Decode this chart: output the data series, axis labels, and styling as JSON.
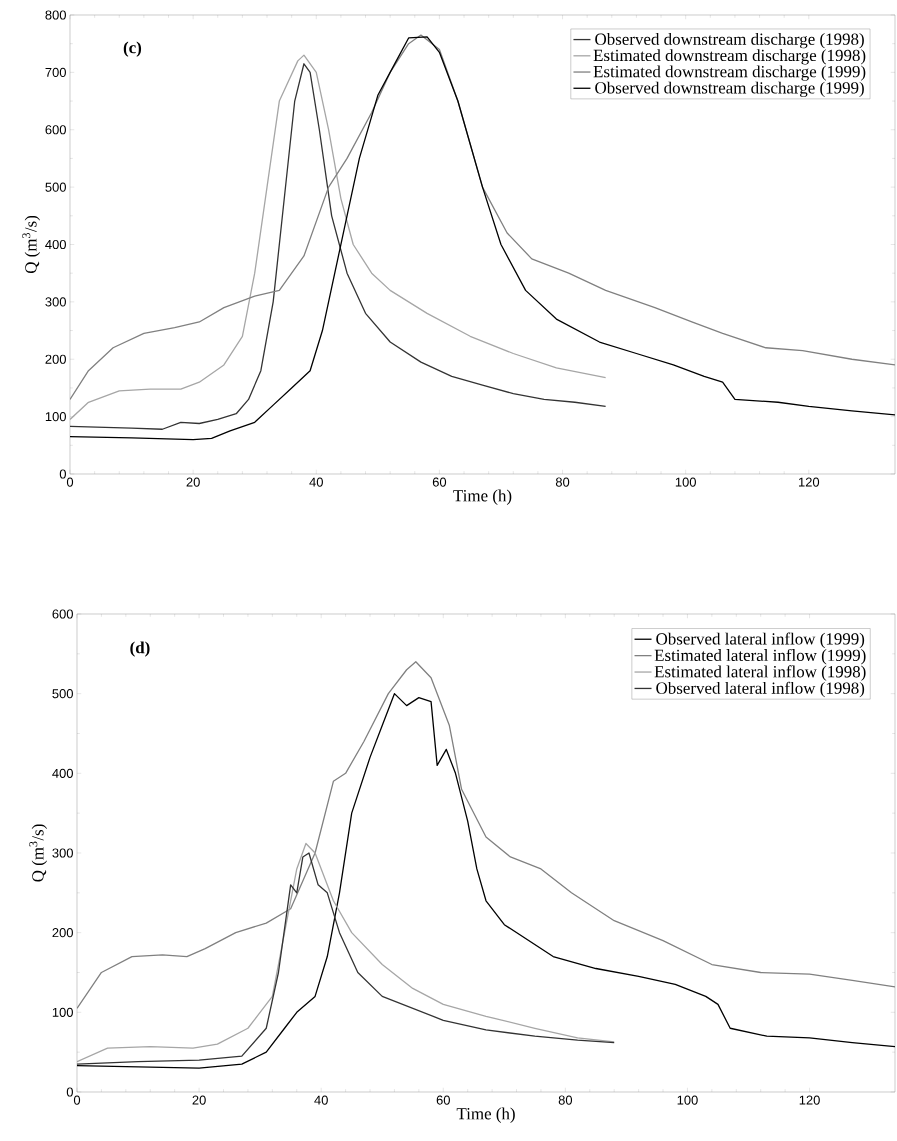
{
  "chart_data": [
    {
      "type": "line",
      "xlabel": "Time (h)",
      "ylabel": "Q (m$^{3}$/s)",
      "annotations": [
        "(c)"
      ],
      "legend": "top right",
      "xlim": [
        0,
        134
      ],
      "ylim": [
        0,
        800
      ],
      "xticks": [
        0,
        20,
        40,
        60,
        80,
        100,
        120
      ],
      "yticks": [
        0,
        100,
        200,
        300,
        400,
        500,
        600,
        700,
        800
      ],
      "series": [
        {
          "name": "Observed downstream discharge (1998)",
          "color": "#333333",
          "x": [
            0,
            10,
            15,
            18,
            21,
            24,
            27,
            29,
            31,
            33,
            35,
            36.5,
            38,
            39,
            40.5,
            42.5,
            45,
            48,
            52,
            57,
            62,
            67,
            72,
            77,
            82,
            87
          ],
          "values": [
            83,
            80,
            78,
            90,
            88,
            95,
            105,
            130,
            180,
            300,
            500,
            650,
            715,
            700,
            600,
            450,
            350,
            280,
            230,
            195,
            170,
            155,
            140,
            130,
            125,
            118
          ]
        },
        {
          "name": "Estimated downstream discharge (1998)",
          "color": "#a6a6a6",
          "x": [
            0,
            3,
            8,
            13,
            18,
            21,
            25,
            28,
            30,
            32,
            34,
            37,
            38,
            40,
            42,
            44,
            46,
            49,
            52,
            58,
            65,
            72,
            79,
            87
          ],
          "values": [
            95,
            125,
            145,
            148,
            148,
            160,
            190,
            240,
            350,
            500,
            650,
            720,
            730,
            700,
            600,
            480,
            400,
            350,
            320,
            280,
            240,
            210,
            185,
            168
          ]
        },
        {
          "name": "Estimated downstream discharge (1999)",
          "color": "#808080",
          "x": [
            0,
            3,
            7,
            12,
            17,
            21,
            25,
            30,
            34,
            38,
            42,
            45,
            49,
            52,
            55,
            57,
            60,
            63,
            67,
            71,
            75,
            81,
            87,
            95,
            101,
            106,
            113,
            119,
            127,
            134
          ],
          "values": [
            130,
            180,
            220,
            245,
            255,
            265,
            290,
            310,
            320,
            380,
            500,
            550,
            630,
            700,
            750,
            765,
            740,
            650,
            500,
            420,
            375,
            350,
            320,
            290,
            265,
            245,
            220,
            215,
            200,
            190
          ]
        },
        {
          "name": "Observed downstream discharge (1999)",
          "color": "#000000",
          "x": [
            0,
            10,
            20,
            23,
            26,
            30,
            33,
            36,
            39,
            41,
            44,
            47,
            50,
            53,
            55,
            58,
            60,
            63,
            67,
            70,
            74,
            79,
            86,
            92,
            98,
            103,
            106,
            108,
            115,
            120,
            127,
            134
          ],
          "values": [
            65,
            63,
            60,
            62,
            75,
            90,
            120,
            150,
            180,
            250,
            400,
            550,
            660,
            720,
            760,
            762,
            735,
            650,
            500,
            400,
            320,
            270,
            230,
            210,
            190,
            170,
            160,
            130,
            125,
            118,
            110,
            103
          ]
        }
      ]
    },
    {
      "type": "line",
      "xlabel": "Time (h)",
      "ylabel": "Q (m$^{3}$/s)",
      "annotations": [
        "(d)"
      ],
      "legend": "top right",
      "xlim": [
        0,
        134
      ],
      "ylim": [
        0,
        600
      ],
      "xticks": [
        0,
        20,
        40,
        60,
        80,
        100,
        120
      ],
      "yticks": [
        0,
        100,
        200,
        300,
        400,
        500,
        600
      ],
      "series": [
        {
          "name": "Observed lateral inflow (1999)",
          "color": "#000000",
          "x": [
            0,
            20,
            27,
            31,
            34,
            36,
            39,
            41,
            43,
            45,
            48,
            50,
            52,
            54,
            56,
            58,
            59,
            60.5,
            62,
            64,
            65.5,
            67,
            70,
            74,
            78,
            85,
            92,
            98,
            103,
            105,
            107,
            113,
            120,
            127,
            134
          ],
          "values": [
            33,
            30,
            35,
            50,
            80,
            100,
            120,
            170,
            250,
            350,
            420,
            460,
            500,
            485,
            495,
            490,
            410,
            430,
            400,
            340,
            280,
            240,
            210,
            190,
            170,
            155,
            145,
            135,
            120,
            110,
            80,
            70,
            68,
            62,
            57
          ]
        },
        {
          "name": "Estimated lateral inflow (1999)",
          "color": "#808080",
          "x": [
            0,
            4,
            9,
            14,
            18,
            21,
            26,
            31,
            35,
            39,
            42,
            44,
            47,
            51,
            54,
            55.5,
            58,
            61,
            63,
            67,
            71,
            76,
            81,
            88,
            96,
            104,
            112,
            120,
            127,
            134
          ],
          "values": [
            105,
            150,
            170,
            172,
            170,
            180,
            200,
            212,
            230,
            300,
            390,
            400,
            440,
            500,
            530,
            540,
            520,
            460,
            380,
            320,
            295,
            280,
            250,
            215,
            190,
            160,
            150,
            148,
            140,
            132
          ]
        },
        {
          "name": "Estimated lateral inflow (1998)",
          "color": "#a6a6a6",
          "x": [
            0,
            5,
            12,
            19,
            23,
            28,
            32,
            34,
            36,
            37.5,
            39,
            42,
            45,
            50,
            55,
            60,
            67,
            75,
            82,
            88
          ],
          "values": [
            38,
            55,
            57,
            55,
            60,
            80,
            120,
            200,
            280,
            312,
            300,
            240,
            200,
            160,
            130,
            110,
            95,
            80,
            68,
            63
          ]
        },
        {
          "name": "Observed lateral inflow (1998)",
          "color": "#333333",
          "x": [
            0,
            10,
            20,
            27,
            31,
            33,
            35,
            36,
            37,
            38,
            39.5,
            41,
            43,
            46,
            50,
            55,
            60,
            67,
            75,
            82,
            88
          ],
          "values": [
            35,
            38,
            40,
            45,
            80,
            150,
            260,
            250,
            295,
            300,
            260,
            250,
            200,
            150,
            120,
            105,
            90,
            78,
            70,
            65,
            62
          ]
        }
      ]
    }
  ]
}
